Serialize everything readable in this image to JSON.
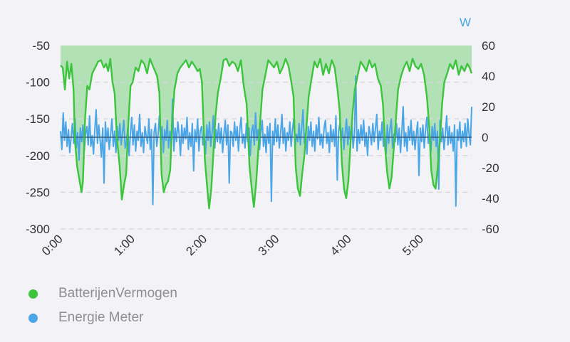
{
  "chart_data": {
    "type": "line",
    "y_right_unit": "W",
    "left_axis": {
      "ticks": [
        "-50",
        "-100",
        "-150",
        "-200",
        "-250",
        "-300"
      ],
      "range": [
        -300,
        -50
      ]
    },
    "right_axis": {
      "ticks": [
        "60",
        "40",
        "20",
        "0",
        "-20",
        "-40",
        "-60"
      ],
      "range": [
        -60,
        60
      ]
    },
    "x_axis": {
      "ticks": [
        "0:00",
        "1:00",
        "2:00",
        "3:00",
        "4:00",
        "5:00"
      ],
      "range_hours": [
        0,
        5.7
      ]
    },
    "grid": true,
    "legend_position": "bottom-left",
    "series": [
      {
        "name": "BatterijenVermogen",
        "color": "#3dc43d",
        "axis": "left",
        "fill": "top",
        "points": [
          [
            0.0,
            -77
          ],
          [
            0.03,
            -80
          ],
          [
            0.06,
            -110
          ],
          [
            0.09,
            -72
          ],
          [
            0.12,
            -95
          ],
          [
            0.15,
            -75
          ],
          [
            0.18,
            -110
          ],
          [
            0.2,
            -180
          ],
          [
            0.23,
            -215
          ],
          [
            0.26,
            -232
          ],
          [
            0.29,
            -250
          ],
          [
            0.31,
            -235
          ],
          [
            0.34,
            -150
          ],
          [
            0.37,
            -105
          ],
          [
            0.4,
            -110
          ],
          [
            0.44,
            -88
          ],
          [
            0.48,
            -80
          ],
          [
            0.52,
            -72
          ],
          [
            0.56,
            -70
          ],
          [
            0.6,
            -80
          ],
          [
            0.63,
            -75
          ],
          [
            0.66,
            -85
          ],
          [
            0.69,
            -68
          ],
          [
            0.72,
            -100
          ],
          [
            0.75,
            -115
          ],
          [
            0.78,
            -175
          ],
          [
            0.82,
            -215
          ],
          [
            0.85,
            -260
          ],
          [
            0.88,
            -240
          ],
          [
            0.91,
            -225
          ],
          [
            0.94,
            -155
          ],
          [
            0.97,
            -105
          ],
          [
            1.0,
            -100
          ],
          [
            1.04,
            -80
          ],
          [
            1.08,
            -85
          ],
          [
            1.12,
            -70
          ],
          [
            1.16,
            -75
          ],
          [
            1.2,
            -88
          ],
          [
            1.24,
            -68
          ],
          [
            1.28,
            -78
          ],
          [
            1.31,
            -85
          ],
          [
            1.34,
            -92
          ],
          [
            1.37,
            -115
          ],
          [
            1.4,
            -225
          ],
          [
            1.43,
            -250
          ],
          [
            1.46,
            -240
          ],
          [
            1.49,
            -235
          ],
          [
            1.52,
            -220
          ],
          [
            1.55,
            -150
          ],
          [
            1.58,
            -110
          ],
          [
            1.62,
            -88
          ],
          [
            1.66,
            -80
          ],
          [
            1.7,
            -75
          ],
          [
            1.74,
            -70
          ],
          [
            1.78,
            -80
          ],
          [
            1.82,
            -72
          ],
          [
            1.86,
            -78
          ],
          [
            1.9,
            -85
          ],
          [
            1.93,
            -82
          ],
          [
            1.96,
            -100
          ],
          [
            2.0,
            -205
          ],
          [
            2.03,
            -240
          ],
          [
            2.06,
            -272
          ],
          [
            2.09,
            -245
          ],
          [
            2.12,
            -195
          ],
          [
            2.15,
            -145
          ],
          [
            2.18,
            -115
          ],
          [
            2.22,
            -95
          ],
          [
            2.26,
            -70
          ],
          [
            2.3,
            -68
          ],
          [
            2.34,
            -78
          ],
          [
            2.38,
            -72
          ],
          [
            2.42,
            -75
          ],
          [
            2.46,
            -85
          ],
          [
            2.5,
            -70
          ],
          [
            2.54,
            -105
          ],
          [
            2.58,
            -130
          ],
          [
            2.62,
            -215
          ],
          [
            2.65,
            -245
          ],
          [
            2.68,
            -270
          ],
          [
            2.71,
            -240
          ],
          [
            2.74,
            -195
          ],
          [
            2.77,
            -150
          ],
          [
            2.8,
            -110
          ],
          [
            2.84,
            -90
          ],
          [
            2.88,
            -70
          ],
          [
            2.92,
            -75
          ],
          [
            2.96,
            -80
          ],
          [
            3.0,
            -72
          ],
          [
            3.04,
            -88
          ],
          [
            3.08,
            -80
          ],
          [
            3.12,
            -68
          ],
          [
            3.16,
            -78
          ],
          [
            3.2,
            -100
          ],
          [
            3.23,
            -120
          ],
          [
            3.26,
            -215
          ],
          [
            3.29,
            -245
          ],
          [
            3.32,
            -255
          ],
          [
            3.35,
            -225
          ],
          [
            3.38,
            -200
          ],
          [
            3.41,
            -160
          ],
          [
            3.44,
            -120
          ],
          [
            3.48,
            -95
          ],
          [
            3.52,
            -72
          ],
          [
            3.56,
            -80
          ],
          [
            3.6,
            -68
          ],
          [
            3.64,
            -90
          ],
          [
            3.68,
            -75
          ],
          [
            3.72,
            -88
          ],
          [
            3.76,
            -70
          ],
          [
            3.8,
            -80
          ],
          [
            3.84,
            -110
          ],
          [
            3.87,
            -140
          ],
          [
            3.9,
            -210
          ],
          [
            3.93,
            -245
          ],
          [
            3.96,
            -258
          ],
          [
            3.99,
            -235
          ],
          [
            4.02,
            -185
          ],
          [
            4.05,
            -140
          ],
          [
            4.08,
            -110
          ],
          [
            4.12,
            -90
          ],
          [
            4.16,
            -72
          ],
          [
            4.2,
            -78
          ],
          [
            4.24,
            -85
          ],
          [
            4.28,
            -70
          ],
          [
            4.32,
            -80
          ],
          [
            4.36,
            -75
          ],
          [
            4.4,
            -95
          ],
          [
            4.44,
            -105
          ],
          [
            4.47,
            -130
          ],
          [
            4.5,
            -190
          ],
          [
            4.53,
            -225
          ],
          [
            4.56,
            -245
          ],
          [
            4.59,
            -230
          ],
          [
            4.62,
            -190
          ],
          [
            4.65,
            -150
          ],
          [
            4.68,
            -110
          ],
          [
            4.72,
            -92
          ],
          [
            4.76,
            -80
          ],
          [
            4.8,
            -72
          ],
          [
            4.84,
            -85
          ],
          [
            4.88,
            -68
          ],
          [
            4.92,
            -78
          ],
          [
            4.96,
            -82
          ],
          [
            5.0,
            -75
          ],
          [
            5.04,
            -90
          ],
          [
            5.08,
            -120
          ],
          [
            5.11,
            -160
          ],
          [
            5.14,
            -220
          ],
          [
            5.17,
            -240
          ],
          [
            5.2,
            -245
          ],
          [
            5.23,
            -215
          ],
          [
            5.26,
            -180
          ],
          [
            5.29,
            -130
          ],
          [
            5.32,
            -100
          ],
          [
            5.36,
            -88
          ],
          [
            5.4,
            -75
          ],
          [
            5.44,
            -82
          ],
          [
            5.48,
            -70
          ],
          [
            5.52,
            -90
          ],
          [
            5.56,
            -78
          ],
          [
            5.6,
            -85
          ],
          [
            5.64,
            -75
          ],
          [
            5.67,
            -80
          ],
          [
            5.7,
            -88
          ]
        ]
      },
      {
        "name": "Energie Meter",
        "color": "#4aa6e6",
        "axis": "right",
        "values_W": [
          4,
          -8,
          16,
          -2,
          10,
          -6,
          5,
          -10,
          0,
          9,
          -4,
          12,
          -7,
          3,
          -15,
          6,
          -3,
          8,
          -9,
          2,
          7,
          -5,
          14,
          -6,
          1,
          -11,
          5,
          18,
          -4,
          8,
          -2,
          -13,
          6,
          -30,
          10,
          -3,
          6,
          -8,
          2,
          12,
          -6,
          4,
          -10,
          7,
          -2,
          9,
          -5,
          3,
          11,
          -7,
          -3,
          6,
          -12,
          2,
          13,
          -5,
          8,
          -9,
          4,
          -2,
          15,
          -6,
          3,
          -10,
          7,
          1,
          -4,
          12,
          -8,
          5,
          -44,
          3,
          9,
          -6,
          2,
          14,
          -3,
          7,
          -10,
          5,
          -2,
          11,
          -7,
          4,
          -5,
          25,
          -9,
          6,
          -3,
          10,
          2,
          -12,
          8,
          -4,
          6,
          -1,
          13,
          -8,
          3,
          -6,
          9,
          -22,
          5,
          -3,
          12,
          -9,
          4,
          7,
          -5,
          2,
          -11,
          8,
          -2,
          10,
          -6,
          3,
          14,
          -7,
          5,
          -3,
          9,
          -4,
          6,
          -10,
          2,
          11,
          -5,
          8,
          -30,
          4,
          3,
          -6,
          10,
          -2,
          7,
          -9,
          5,
          13,
          -4,
          2,
          -7,
          9,
          -3,
          6,
          -12,
          4,
          8,
          -5,
          16,
          -2,
          5,
          -8,
          3,
          11,
          -6,
          2,
          -10,
          7,
          -4,
          9,
          -42,
          4,
          -5,
          12,
          -3,
          8,
          -7,
          2,
          15,
          -4,
          6,
          -9,
          3,
          -2,
          10,
          -6,
          5,
          12,
          -8,
          2,
          -3,
          9,
          -5,
          6,
          18,
          -4,
          3,
          -11,
          7,
          -2,
          10,
          -6,
          4,
          -9,
          8,
          -1,
          13,
          -5,
          2,
          -7,
          6,
          11,
          -4,
          3,
          -10,
          8,
          -3,
          5,
          -6,
          14,
          -28,
          4,
          9,
          -2,
          6,
          -8,
          3,
          12,
          -5,
          7,
          -3,
          10,
          -7,
          2,
          40,
          -9,
          5,
          -4,
          8,
          -2,
          11,
          -6,
          3,
          -12,
          7,
          2,
          -5,
          9,
          -3,
          6,
          15,
          -8,
          4,
          -2,
          10,
          -6,
          3,
          -11,
          8,
          -4,
          5,
          12,
          -7,
          2,
          -3,
          9,
          -5,
          6,
          -10,
          4,
          20,
          -6,
          3,
          -9,
          7,
          -2,
          11,
          -5,
          4,
          -8,
          2,
          10,
          -25,
          6,
          -3,
          8,
          -7,
          5,
          13,
          -4,
          3,
          -10,
          7,
          -2,
          9,
          -6,
          4,
          -34,
          11,
          -3,
          6,
          -8,
          2,
          14,
          -5,
          7,
          -4,
          3,
          -9,
          8,
          -45,
          5,
          -2,
          10,
          -7,
          4,
          -3,
          9,
          -6,
          12,
          2,
          -5,
          20
        ]
      }
    ]
  }
}
